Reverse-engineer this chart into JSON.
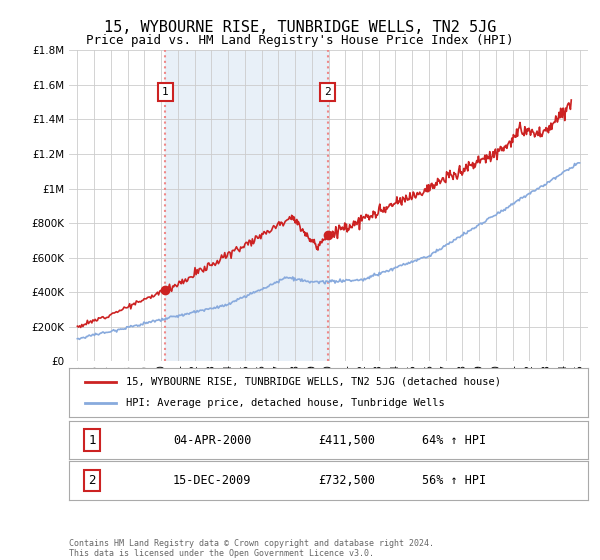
{
  "title": "15, WYBOURNE RISE, TUNBRIDGE WELLS, TN2 5JG",
  "subtitle": "Price paid vs. HM Land Registry's House Price Index (HPI)",
  "legend_line1": "15, WYBOURNE RISE, TUNBRIDGE WELLS, TN2 5JG (detached house)",
  "legend_line2": "HPI: Average price, detached house, Tunbridge Wells",
  "footer1": "Contains HM Land Registry data © Crown copyright and database right 2024.",
  "footer2": "This data is licensed under the Open Government Licence v3.0.",
  "sale1_label": "1",
  "sale1_date": "04-APR-2000",
  "sale1_price": "£411,500",
  "sale1_hpi": "64% ↑ HPI",
  "sale1_year": 2000.25,
  "sale1_value": 411500,
  "sale2_label": "2",
  "sale2_date": "15-DEC-2009",
  "sale2_price": "£732,500",
  "sale2_hpi": "56% ↑ HPI",
  "sale2_year": 2009.95,
  "sale2_value": 732500,
  "property_line_color": "#cc2222",
  "hpi_line_color": "#88aadd",
  "marker_color": "#cc2222",
  "vline_color": "#ee8888",
  "shading_color": "#e8f0f8",
  "background_color": "#ffffff",
  "grid_color": "#cccccc",
  "ylim": [
    0,
    1800000
  ],
  "xlim": [
    1994.5,
    2025.5
  ],
  "yticks": [
    0,
    200000,
    400000,
    600000,
    800000,
    1000000,
    1200000,
    1400000,
    1600000,
    1800000
  ],
  "ytick_labels": [
    "£0",
    "£200K",
    "£400K",
    "£600K",
    "£800K",
    "£1M",
    "£1.2M",
    "£1.4M",
    "£1.6M",
    "£1.8M"
  ],
  "title_fontsize": 11,
  "subtitle_fontsize": 9,
  "tick_fontsize": 7.5
}
